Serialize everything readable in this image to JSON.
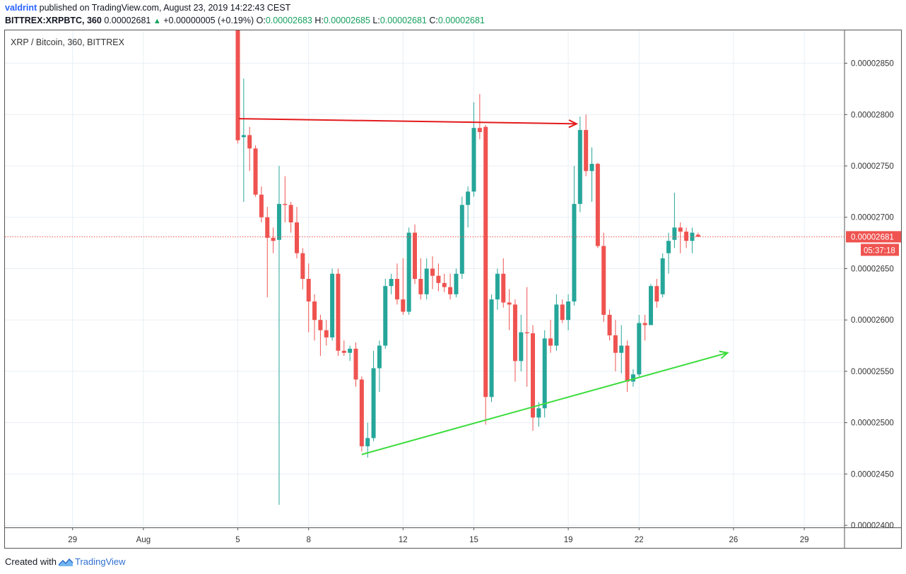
{
  "header": {
    "user": "valdrint",
    "published_text": "published on TradingView.com, August 23, 2019 14:22:43 CEST",
    "symbol": "BITTREX:XRPBTC, 360",
    "last": "0.00002681",
    "change": "+0.00000005 (+0.19%)",
    "o_label": "O:",
    "o": "0.00002683",
    "h_label": "H:",
    "h": "0.00002685",
    "l_label": "L:",
    "l": "0.00002681",
    "c_label": "C:",
    "c": "0.00002681"
  },
  "chart_title": "XRP / Bitcoin, 360, BITTREX",
  "footer": {
    "created_with": "Created with",
    "brand": "TradingView"
  },
  "colors": {
    "up": "#26a69a",
    "down": "#ef5350",
    "grid": "#e8eff5",
    "resistance_line": "#e31a1c",
    "support_line": "#3ddc3d",
    "price_label_bg": "#ef5350"
  },
  "chart_data": {
    "type": "candlestick",
    "title": "XRP / Bitcoin, 360, BITTREX",
    "ylim": [
      2.398e-05,
      2.882e-05
    ],
    "y_ticks": [
      "0.00002850",
      "0.00002800",
      "0.00002750",
      "0.00002700",
      "0.00002650",
      "0.00002600",
      "0.00002550",
      "0.00002500",
      "0.00002450",
      "0.00002400"
    ],
    "x_ticks": [
      "29",
      "Aug",
      "5",
      "8",
      "12",
      "15",
      "19",
      "22",
      "26",
      "29"
    ],
    "x_tick_days": [
      29,
      32,
      36,
      39,
      43,
      46,
      50,
      53,
      57,
      60
    ],
    "last_price": "0.00002681",
    "countdown": "05:37:18",
    "candles": [
      {
        "d": 36.0,
        "o": 2.882,
        "h": 2.882,
        "l": 2.772,
        "c": 2.775
      },
      {
        "d": 36.25,
        "o": 2.778,
        "h": 2.835,
        "l": 2.715,
        "c": 2.78
      },
      {
        "d": 36.5,
        "o": 2.78,
        "h": 2.788,
        "l": 2.745,
        "c": 2.767
      },
      {
        "d": 36.75,
        "o": 2.767,
        "h": 2.77,
        "l": 2.72,
        "c": 2.722
      },
      {
        "d": 37.0,
        "o": 2.722,
        "h": 2.73,
        "l": 2.695,
        "c": 2.7
      },
      {
        "d": 37.25,
        "o": 2.7,
        "h": 2.71,
        "l": 2.622,
        "c": 2.68
      },
      {
        "d": 37.5,
        "o": 2.68,
        "h": 2.69,
        "l": 2.665,
        "c": 2.677
      },
      {
        "d": 37.75,
        "o": 2.678,
        "h": 2.75,
        "l": 2.42,
        "c": 2.713
      },
      {
        "d": 38.0,
        "o": 2.713,
        "h": 2.74,
        "l": 2.695,
        "c": 2.712
      },
      {
        "d": 38.25,
        "o": 2.712,
        "h": 2.715,
        "l": 2.685,
        "c": 2.695
      },
      {
        "d": 38.5,
        "o": 2.695,
        "h": 2.71,
        "l": 2.66,
        "c": 2.665
      },
      {
        "d": 38.75,
        "o": 2.665,
        "h": 2.67,
        "l": 2.63,
        "c": 2.64
      },
      {
        "d": 39.0,
        "o": 2.64,
        "h": 2.655,
        "l": 2.588,
        "c": 2.618
      },
      {
        "d": 39.25,
        "o": 2.618,
        "h": 2.625,
        "l": 2.58,
        "c": 2.6
      },
      {
        "d": 39.5,
        "o": 2.6,
        "h": 2.605,
        "l": 2.565,
        "c": 2.59
      },
      {
        "d": 39.75,
        "o": 2.59,
        "h": 2.6,
        "l": 2.575,
        "c": 2.583
      },
      {
        "d": 40.0,
        "o": 2.583,
        "h": 2.65,
        "l": 2.58,
        "c": 2.645
      },
      {
        "d": 40.25,
        "o": 2.645,
        "h": 2.65,
        "l": 2.565,
        "c": 2.57
      },
      {
        "d": 40.5,
        "o": 2.57,
        "h": 2.58,
        "l": 2.565,
        "c": 2.568
      },
      {
        "d": 40.75,
        "o": 2.568,
        "h": 2.575,
        "l": 2.56,
        "c": 2.572
      },
      {
        "d": 41.0,
        "o": 2.572,
        "h": 2.578,
        "l": 2.535,
        "c": 2.542
      },
      {
        "d": 41.25,
        "o": 2.542,
        "h": 2.545,
        "l": 2.472,
        "c": 2.477
      },
      {
        "d": 41.5,
        "o": 2.477,
        "h": 2.5,
        "l": 2.466,
        "c": 2.485
      },
      {
        "d": 41.75,
        "o": 2.485,
        "h": 2.57,
        "l": 2.482,
        "c": 2.553
      },
      {
        "d": 42.0,
        "o": 2.553,
        "h": 2.58,
        "l": 2.53,
        "c": 2.575
      },
      {
        "d": 42.25,
        "o": 2.575,
        "h": 2.64,
        "l": 2.572,
        "c": 2.633
      },
      {
        "d": 42.5,
        "o": 2.633,
        "h": 2.645,
        "l": 2.625,
        "c": 2.64
      },
      {
        "d": 42.75,
        "o": 2.64,
        "h": 2.655,
        "l": 2.615,
        "c": 2.62
      },
      {
        "d": 43.0,
        "o": 2.62,
        "h": 2.66,
        "l": 2.605,
        "c": 2.608
      },
      {
        "d": 43.25,
        "o": 2.608,
        "h": 2.69,
        "l": 2.605,
        "c": 2.685
      },
      {
        "d": 43.5,
        "o": 2.685,
        "h": 2.693,
        "l": 2.635,
        "c": 2.64
      },
      {
        "d": 43.75,
        "o": 2.64,
        "h": 2.66,
        "l": 2.62,
        "c": 2.625
      },
      {
        "d": 44.0,
        "o": 2.625,
        "h": 2.66,
        "l": 2.62,
        "c": 2.65
      },
      {
        "d": 44.25,
        "o": 2.65,
        "h": 2.662,
        "l": 2.63,
        "c": 2.643
      },
      {
        "d": 44.5,
        "o": 2.643,
        "h": 2.655,
        "l": 2.628,
        "c": 2.636
      },
      {
        "d": 44.75,
        "o": 2.636,
        "h": 2.645,
        "l": 2.627,
        "c": 2.632
      },
      {
        "d": 45.0,
        "o": 2.632,
        "h": 2.645,
        "l": 2.62,
        "c": 2.625
      },
      {
        "d": 45.25,
        "o": 2.625,
        "h": 2.65,
        "l": 2.622,
        "c": 2.645
      },
      {
        "d": 45.5,
        "o": 2.645,
        "h": 2.72,
        "l": 2.64,
        "c": 2.712
      },
      {
        "d": 45.75,
        "o": 2.712,
        "h": 2.73,
        "l": 2.69,
        "c": 2.725
      },
      {
        "d": 46.0,
        "o": 2.725,
        "h": 2.812,
        "l": 2.72,
        "c": 2.787
      },
      {
        "d": 46.25,
        "o": 2.787,
        "h": 2.82,
        "l": 2.776,
        "c": 2.783
      },
      {
        "d": 46.5,
        "o": 2.788,
        "h": 2.79,
        "l": 2.498,
        "c": 2.525
      },
      {
        "d": 46.75,
        "o": 2.525,
        "h": 2.625,
        "l": 2.52,
        "c": 2.62
      },
      {
        "d": 47.0,
        "o": 2.62,
        "h": 2.65,
        "l": 2.61,
        "c": 2.645
      },
      {
        "d": 47.25,
        "o": 2.645,
        "h": 2.66,
        "l": 2.612,
        "c": 2.617
      },
      {
        "d": 47.5,
        "o": 2.617,
        "h": 2.63,
        "l": 2.59,
        "c": 2.615
      },
      {
        "d": 47.75,
        "o": 2.615,
        "h": 2.62,
        "l": 2.54,
        "c": 2.56
      },
      {
        "d": 48.0,
        "o": 2.56,
        "h": 2.605,
        "l": 2.55,
        "c": 2.588
      },
      {
        "d": 48.25,
        "o": 2.588,
        "h": 2.632,
        "l": 2.535,
        "c": 2.587
      },
      {
        "d": 48.5,
        "o": 2.587,
        "h": 2.595,
        "l": 2.492,
        "c": 2.505
      },
      {
        "d": 48.75,
        "o": 2.505,
        "h": 2.52,
        "l": 2.496,
        "c": 2.514
      },
      {
        "d": 49.0,
        "o": 2.514,
        "h": 2.59,
        "l": 2.505,
        "c": 2.582
      },
      {
        "d": 49.25,
        "o": 2.582,
        "h": 2.6,
        "l": 2.568,
        "c": 2.575
      },
      {
        "d": 49.5,
        "o": 2.575,
        "h": 2.625,
        "l": 2.57,
        "c": 2.615
      },
      {
        "d": 49.75,
        "o": 2.615,
        "h": 2.62,
        "l": 2.597,
        "c": 2.6
      },
      {
        "d": 50.0,
        "o": 2.6,
        "h": 2.625,
        "l": 2.59,
        "c": 2.618
      },
      {
        "d": 50.25,
        "o": 2.618,
        "h": 2.75,
        "l": 2.614,
        "c": 2.713
      },
      {
        "d": 50.5,
        "o": 2.713,
        "h": 2.798,
        "l": 2.705,
        "c": 2.785
      },
      {
        "d": 50.75,
        "o": 2.785,
        "h": 2.8,
        "l": 2.74,
        "c": 2.745
      },
      {
        "d": 51.0,
        "o": 2.745,
        "h": 2.768,
        "l": 2.715,
        "c": 2.752
      },
      {
        "d": 51.25,
        "o": 2.752,
        "h": 2.753,
        "l": 2.67,
        "c": 2.672
      },
      {
        "d": 51.5,
        "o": 2.672,
        "h": 2.685,
        "l": 2.598,
        "c": 2.605
      },
      {
        "d": 51.75,
        "o": 2.605,
        "h": 2.61,
        "l": 2.58,
        "c": 2.585
      },
      {
        "d": 52.0,
        "o": 2.585,
        "h": 2.6,
        "l": 2.55,
        "c": 2.568
      },
      {
        "d": 52.25,
        "o": 2.568,
        "h": 2.595,
        "l": 2.548,
        "c": 2.575
      },
      {
        "d": 52.5,
        "o": 2.575,
        "h": 2.58,
        "l": 2.53,
        "c": 2.54
      },
      {
        "d": 52.75,
        "o": 2.54,
        "h": 2.552,
        "l": 2.535,
        "c": 2.547
      },
      {
        "d": 53.0,
        "o": 2.547,
        "h": 2.605,
        "l": 2.545,
        "c": 2.597
      },
      {
        "d": 53.25,
        "o": 2.597,
        "h": 2.605,
        "l": 2.58,
        "c": 2.595
      },
      {
        "d": 53.5,
        "o": 2.595,
        "h": 2.635,
        "l": 2.595,
        "c": 2.633
      },
      {
        "d": 53.75,
        "o": 2.633,
        "h": 2.64,
        "l": 2.612,
        "c": 2.618
      },
      {
        "d": 54.0,
        "o": 2.625,
        "h": 2.665,
        "l": 2.622,
        "c": 2.66
      },
      {
        "d": 54.25,
        "o": 2.665,
        "h": 2.685,
        "l": 2.645,
        "c": 2.677
      },
      {
        "d": 54.5,
        "o": 2.678,
        "h": 2.724,
        "l": 2.67,
        "c": 2.69
      },
      {
        "d": 54.75,
        "o": 2.69,
        "h": 2.695,
        "l": 2.665,
        "c": 2.686
      },
      {
        "d": 55.0,
        "o": 2.686,
        "h": 2.69,
        "l": 2.67,
        "c": 2.677
      },
      {
        "d": 55.25,
        "o": 2.677,
        "h": 2.69,
        "l": 2.665,
        "c": 2.685
      },
      {
        "d": 55.5,
        "o": 2.683,
        "h": 2.685,
        "l": 2.681,
        "c": 2.681
      }
    ],
    "annotations": [
      {
        "type": "arrow",
        "label": "resistance",
        "from": {
          "d": 36.05,
          "p": 2.796
        },
        "to": {
          "d": 50.35,
          "p": 2.791
        }
      },
      {
        "type": "arrow",
        "label": "support",
        "from": {
          "d": 41.25,
          "p": 2.469
        },
        "to": {
          "d": 56.75,
          "p": 2.568
        }
      }
    ]
  }
}
